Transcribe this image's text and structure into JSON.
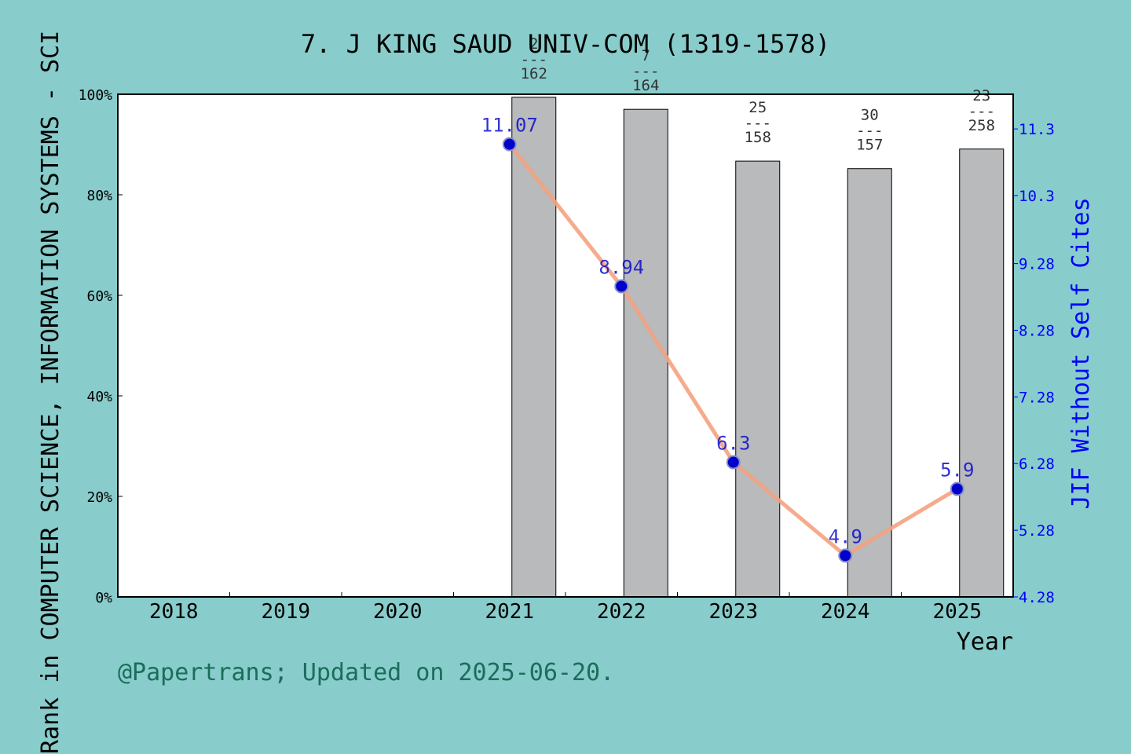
{
  "page": {
    "title": "7. J KING SAUD UNIV-COM (1319-1578)",
    "footer": "@Papertrans; Updated on 2025-06-20."
  },
  "chart_data": {
    "type": "bar",
    "title": "7. J KING SAUD UNIV-COM (1319-1578)",
    "xlabel": "Year",
    "ylabel": "Rank in COMPUTER SCIENCE, INFORMATION SYSTEMS - SCI",
    "y2label": "JIF Without Self Cites",
    "categories": [
      "2018",
      "2019",
      "2020",
      "2021",
      "2022",
      "2023",
      "2024",
      "2025"
    ],
    "ylim": [
      0,
      100
    ],
    "yticks": [
      "0%",
      "20%",
      "40%",
      "60%",
      "80%",
      "100%"
    ],
    "y2lim": [
      4.28,
      11.82
    ],
    "y2ticks": [
      "4.28",
      "5.28",
      "6.28",
      "7.28",
      "8.28",
      "9.28",
      "10.3",
      "11.3"
    ],
    "bars": {
      "values": [
        null,
        null,
        null,
        99.4,
        97.0,
        86.7,
        85.2,
        89.1
      ],
      "label_top": [
        "",
        "",
        "",
        "2",
        "7",
        "25",
        "30",
        "23"
      ],
      "label_sep": [
        "",
        "",
        "",
        "---",
        "---",
        "---",
        "---",
        "---"
      ],
      "label_bottom": [
        "",
        "",
        "",
        "162",
        "164",
        "158",
        "157",
        "258"
      ],
      "color": "#b8babc"
    },
    "line": {
      "values": [
        null,
        null,
        null,
        11.07,
        8.94,
        6.3,
        4.9,
        5.9
      ],
      "labels": [
        "",
        "",
        "",
        "11.07",
        "8.94",
        "6.3",
        "4.9",
        "5.9"
      ],
      "line_color": "#f4a27f",
      "marker_color": "#0000cc",
      "label_color": "#0000cc"
    },
    "grid": false,
    "colors": {
      "background": "#88cccb",
      "plot": "#ffffff",
      "footer": "#1a6d5a",
      "axis2": "#0000ff"
    }
  }
}
